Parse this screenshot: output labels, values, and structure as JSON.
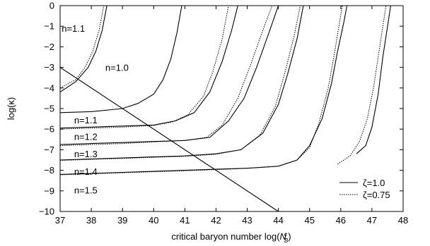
{
  "chart_data": {
    "type": "line",
    "xlabel": "critical baryon number log(",
    "xlabel_symbol": "N",
    "xlabel_sup": "c",
    "xlabel_sub": "B",
    "xlabel_end": ")",
    "ylabel": "log(κ)",
    "xlim": [
      37,
      48
    ],
    "ylim": [
      -10,
      0
    ],
    "xticks": [
      "37",
      "38",
      "39",
      "40",
      "41",
      "42",
      "43",
      "44",
      "45",
      "46",
      "47",
      "48"
    ],
    "yticks": [
      "0",
      "−1",
      "−2",
      "−3",
      "−4",
      "−5",
      "−6",
      "−7",
      "−8",
      "−9",
      "−10"
    ],
    "legend": {
      "position": "bottom-right",
      "items": [
        {
          "label": "ζ=1.0",
          "style": "solid"
        },
        {
          "label": "ζ=0.75",
          "style": "dotted"
        }
      ]
    },
    "curve_labels": [
      {
        "text": "n=1.1",
        "x": 37.05,
        "y": -1.1
      },
      {
        "text": "n=1.0",
        "x": 38.45,
        "y": -3.0
      },
      {
        "text": "n=1.1",
        "x": 37.45,
        "y": -5.55
      },
      {
        "text": "n=1.2",
        "x": 37.45,
        "y": -6.35
      },
      {
        "text": "n=1.3",
        "x": 37.45,
        "y": -7.2
      },
      {
        "text": "n=1.4",
        "x": 37.45,
        "y": -8.05
      },
      {
        "text": "n=1.5",
        "x": 37.45,
        "y": -8.95
      }
    ],
    "series": [
      {
        "style": "solid",
        "points": [
          [
            37,
            -4.2
          ],
          [
            37.5,
            -3.7
          ],
          [
            37.9,
            -3.0
          ],
          [
            38.15,
            -2.2
          ],
          [
            38.35,
            -1.2
          ],
          [
            38.5,
            0
          ]
        ]
      },
      {
        "style": "dotted",
        "points": [
          [
            37,
            -4.0
          ],
          [
            37.5,
            -3.6
          ],
          [
            37.8,
            -3.0
          ],
          [
            38.05,
            -2.2
          ],
          [
            38.25,
            -1.2
          ],
          [
            38.4,
            0
          ]
        ]
      },
      {
        "style": "solid",
        "points": [
          [
            37,
            -5.2
          ],
          [
            38,
            -5.15
          ],
          [
            39,
            -5.0
          ],
          [
            39.5,
            -4.75
          ],
          [
            40,
            -4.3
          ],
          [
            40.3,
            -3.6
          ],
          [
            40.55,
            -2.6
          ],
          [
            40.75,
            -1.3
          ],
          [
            40.9,
            0
          ]
        ]
      },
      {
        "style": "solid",
        "points": [
          [
            37,
            -5.95
          ],
          [
            38,
            -5.9
          ],
          [
            39,
            -5.85
          ],
          [
            40,
            -5.8
          ],
          [
            40.7,
            -5.6
          ],
          [
            41.3,
            -5.2
          ],
          [
            41.8,
            -4.2
          ],
          [
            42.2,
            -2.7
          ],
          [
            42.5,
            -1.2
          ],
          [
            42.7,
            0
          ]
        ]
      },
      {
        "style": "dotted",
        "points": [
          [
            37,
            -6.0
          ],
          [
            38,
            -5.95
          ],
          [
            39,
            -5.9
          ],
          [
            40,
            -5.82
          ],
          [
            40.6,
            -5.65
          ],
          [
            41.1,
            -5.3
          ],
          [
            41.6,
            -4.4
          ],
          [
            41.9,
            -3.2
          ],
          [
            42.2,
            -1.6
          ],
          [
            42.4,
            0
          ]
        ]
      },
      {
        "style": "solid",
        "points": [
          [
            37,
            -6.75
          ],
          [
            38,
            -6.7
          ],
          [
            39,
            -6.65
          ],
          [
            40,
            -6.6
          ],
          [
            41,
            -6.55
          ],
          [
            41.8,
            -6.4
          ],
          [
            42.4,
            -5.6
          ],
          [
            42.9,
            -4.5
          ],
          [
            43.3,
            -3.0
          ],
          [
            43.7,
            -1.3
          ],
          [
            44.0,
            0
          ]
        ]
      },
      {
        "style": "dotted",
        "points": [
          [
            37,
            -6.8
          ],
          [
            38,
            -6.75
          ],
          [
            39,
            -6.7
          ],
          [
            40,
            -6.62
          ],
          [
            41,
            -6.55
          ],
          [
            41.7,
            -6.4
          ],
          [
            42.2,
            -5.8
          ],
          [
            42.7,
            -4.5
          ],
          [
            43.1,
            -2.9
          ],
          [
            43.5,
            -1.2
          ],
          [
            43.8,
            0
          ]
        ]
      },
      {
        "style": "solid",
        "points": [
          [
            37,
            -7.5
          ],
          [
            38,
            -7.45
          ],
          [
            39,
            -7.4
          ],
          [
            40,
            -7.35
          ],
          [
            41,
            -7.3
          ],
          [
            42,
            -7.2
          ],
          [
            42.8,
            -7.0
          ],
          [
            43.5,
            -6.2
          ],
          [
            44,
            -4.8
          ],
          [
            44.3,
            -3.3
          ],
          [
            44.6,
            -1.6
          ],
          [
            44.8,
            0
          ]
        ]
      },
      {
        "style": "dotted",
        "points": [
          [
            37,
            -7.52
          ],
          [
            38,
            -7.47
          ],
          [
            39,
            -7.42
          ],
          [
            40,
            -7.37
          ],
          [
            41,
            -7.32
          ],
          [
            42,
            -7.22
          ],
          [
            42.8,
            -7.0
          ],
          [
            43.4,
            -6.3
          ],
          [
            43.9,
            -4.9
          ],
          [
            44.2,
            -3.3
          ],
          [
            44.5,
            -1.5
          ],
          [
            44.7,
            0
          ]
        ]
      },
      {
        "style": "solid",
        "points": [
          [
            37,
            -8.2
          ],
          [
            38,
            -8.15
          ],
          [
            39,
            -8.1
          ],
          [
            40,
            -8.05
          ],
          [
            41,
            -8.0
          ],
          [
            42,
            -7.95
          ],
          [
            43,
            -7.9
          ],
          [
            44,
            -7.8
          ],
          [
            44.6,
            -7.5
          ],
          [
            45,
            -6.8
          ],
          [
            45.4,
            -5.5
          ],
          [
            45.7,
            -3.8
          ],
          [
            45.9,
            -2.2
          ],
          [
            46.1,
            -0.8
          ],
          [
            46.2,
            0
          ]
        ]
      },
      {
        "style": "dotted",
        "points": [
          [
            37,
            -8.22
          ],
          [
            38,
            -8.17
          ],
          [
            39,
            -8.12
          ],
          [
            40,
            -8.07
          ],
          [
            41,
            -8.02
          ],
          [
            42,
            -7.97
          ],
          [
            43,
            -7.9
          ],
          [
            44,
            -7.8
          ],
          [
            44.6,
            -7.5
          ],
          [
            45,
            -6.9
          ],
          [
            45.3,
            -5.7
          ],
          [
            45.6,
            -4.0
          ],
          [
            45.8,
            -2.3
          ],
          [
            45.95,
            -0.9
          ],
          [
            46.05,
            0
          ]
        ]
      },
      {
        "style": "solid",
        "points": [
          [
            46.5,
            -7.2
          ],
          [
            46.8,
            -6.8
          ],
          [
            47.0,
            -5.9
          ],
          [
            47.2,
            -4.3
          ],
          [
            47.35,
            -2.5
          ],
          [
            47.5,
            -1.0
          ],
          [
            47.6,
            0
          ]
        ]
      },
      {
        "style": "dotted",
        "points": [
          [
            45.9,
            -7.7
          ],
          [
            46.3,
            -7.3
          ],
          [
            46.6,
            -6.6
          ],
          [
            46.85,
            -5.5
          ],
          [
            47.05,
            -4.0
          ],
          [
            47.2,
            -2.5
          ],
          [
            47.35,
            -1.0
          ],
          [
            47.45,
            0
          ]
        ]
      },
      {
        "style": "solid",
        "points": [
          [
            37,
            -3.0
          ],
          [
            44,
            -10.0
          ]
        ]
      }
    ]
  }
}
